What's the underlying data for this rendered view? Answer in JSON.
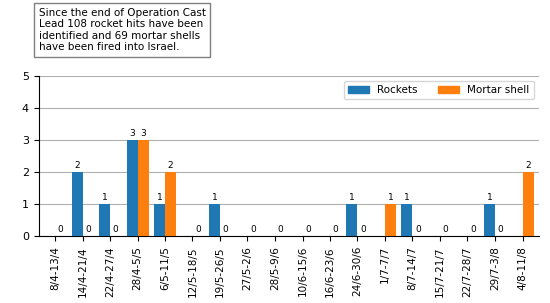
{
  "chart_data": {
    "type": "bar",
    "categories": [
      "8/4-13/4",
      "14/4-21/4",
      "22/4-27/4",
      "28/4-5/5",
      "6/5-11/5",
      "12/5-18/5",
      "19/5-26/5",
      "27/5-2/6",
      "28/5-9/6",
      "10/6-15/6",
      "16/6-23/6",
      "24/6-30/6",
      "1/7-7/7",
      "8/7-14/7",
      "15/7-21/7",
      "22/7-28/7",
      "29/7-3/8",
      "4/8-11/8"
    ],
    "series": [
      {
        "name": "Rockets",
        "values": [
          0,
          2,
          1,
          3,
          1,
          0,
          1,
          0,
          0,
          0,
          0,
          1,
          0,
          1,
          0,
          0,
          1,
          0
        ],
        "value_labels": [
          null,
          "2",
          "1",
          "3",
          "1",
          null,
          "1",
          null,
          null,
          null,
          null,
          "1",
          null,
          "1",
          null,
          null,
          "1",
          null
        ]
      },
      {
        "name": "Mortar shell",
        "values": [
          0,
          0,
          0,
          3,
          2,
          0,
          0,
          0,
          0,
          0,
          0,
          0,
          1,
          0,
          0,
          0,
          0,
          2
        ]
      }
    ],
    "ylim": [
      0,
      5
    ],
    "yticks": [
      0,
      1,
      2,
      3,
      4,
      5
    ],
    "grid": true,
    "legend": "upper right",
    "data_labels": true,
    "annotation": "Since the end of Operation Cast\nLead 108 rocket hits have been\nidentified and 69 mortar shells\nhave been fired into Israel."
  }
}
